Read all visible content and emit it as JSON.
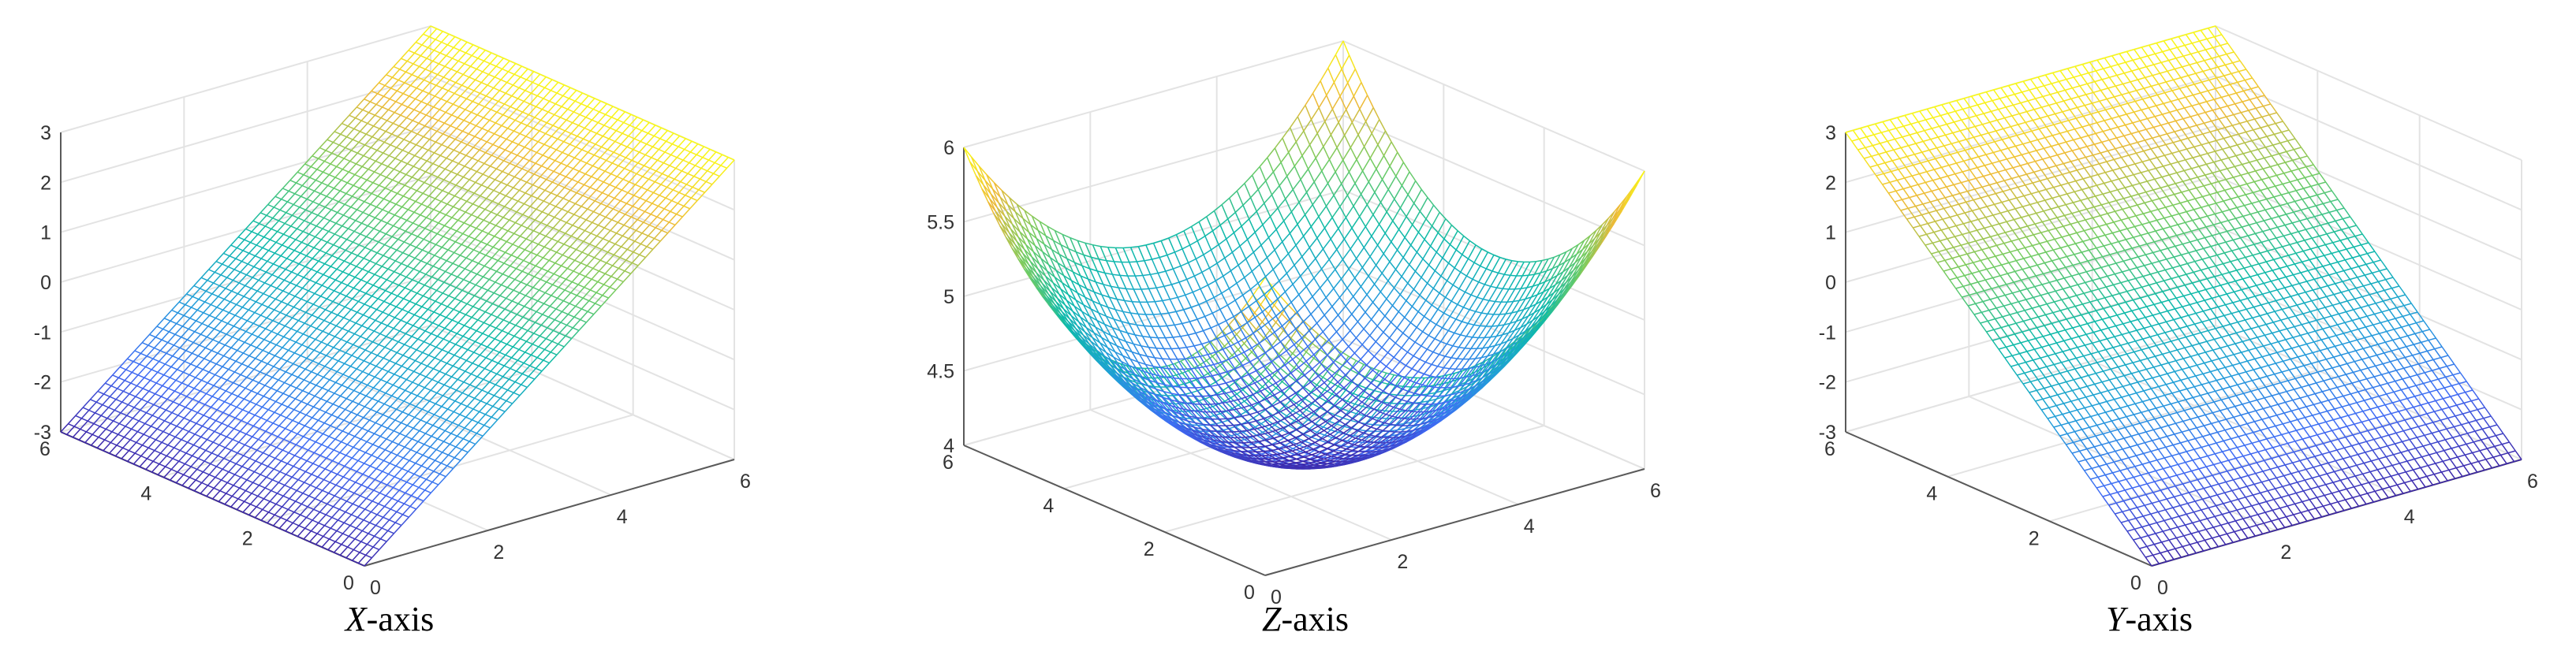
{
  "chart_data": [
    {
      "type": "surface",
      "caption_symbol": "X",
      "caption_suffix": "-axis",
      "surface": "plane_x",
      "xlim": [
        0,
        6
      ],
      "ylim": [
        0,
        6
      ],
      "zlim": [
        -3,
        3
      ],
      "xticks": [
        "0",
        "2",
        "4",
        "6"
      ],
      "yticks": [
        "0",
        "2",
        "4",
        "6"
      ],
      "zticks": [
        "-3",
        "-2",
        "-1",
        "0",
        "1",
        "2",
        "3"
      ],
      "grid": true,
      "colormap": "parula",
      "mesh_lines": 50
    },
    {
      "type": "surface",
      "caption_symbol": "Z",
      "caption_suffix": "-axis",
      "surface": "paraboloid",
      "xlim": [
        0,
        6
      ],
      "ylim": [
        0,
        6
      ],
      "zlim": [
        4,
        6
      ],
      "xticks": [
        "0",
        "2",
        "4",
        "6"
      ],
      "yticks": [
        "0",
        "2",
        "4",
        "6"
      ],
      "zticks": [
        "4",
        "4.5",
        "5",
        "5.5",
        "6"
      ],
      "grid": true,
      "colormap": "parula",
      "mesh_lines": 50
    },
    {
      "type": "surface",
      "caption_symbol": "Y",
      "caption_suffix": "-axis",
      "surface": "plane_y",
      "xlim": [
        0,
        6
      ],
      "ylim": [
        0,
        6
      ],
      "zlim": [
        -3,
        3
      ],
      "xticks": [
        "0",
        "2",
        "4",
        "6"
      ],
      "yticks": [
        "0",
        "2",
        "4",
        "6"
      ],
      "zticks": [
        "-3",
        "-2",
        "-1",
        "0",
        "1",
        "2",
        "3"
      ],
      "grid": true,
      "colormap": "parula",
      "mesh_lines": 50
    }
  ]
}
